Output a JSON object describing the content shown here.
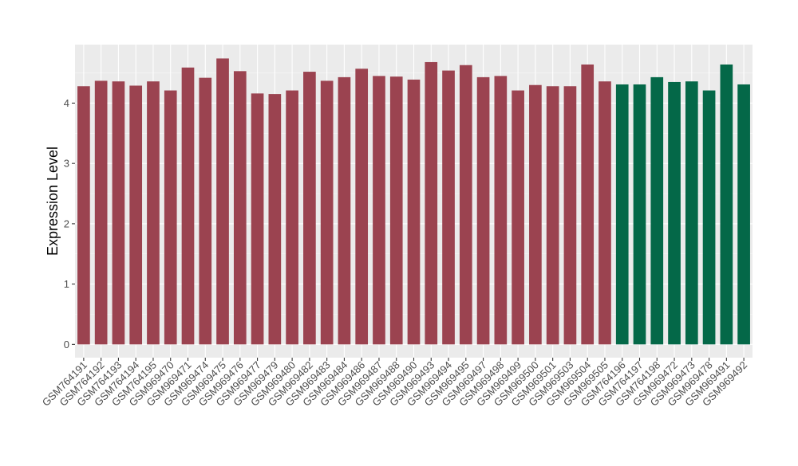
{
  "chart_data": {
    "type": "bar",
    "xlabel": "",
    "ylabel": "Expression Level",
    "ylim": [
      -0.22,
      4.97
    ],
    "yticks": [
      0,
      1,
      2,
      3,
      4
    ],
    "grid": true,
    "legend": "none",
    "colors": {
      "group_a": "#9B4350",
      "group_b": "#046848",
      "panel_bg": "#EBEBEB",
      "grid_major": "#FFFFFF",
      "tick_text": "#4D4D4D",
      "axis_text": "#000000"
    },
    "categories": [
      "GSM764191",
      "GSM764192",
      "GSM764193",
      "GSM764194",
      "GSM764195",
      "GSM969470",
      "GSM969471",
      "GSM969474",
      "GSM969475",
      "GSM969476",
      "GSM969477",
      "GSM969479",
      "GSM969480",
      "GSM969482",
      "GSM969483",
      "GSM969484",
      "GSM969486",
      "GSM969487",
      "GSM969488",
      "GSM969490",
      "GSM969493",
      "GSM969494",
      "GSM969495",
      "GSM969497",
      "GSM969498",
      "GSM969499",
      "GSM969500",
      "GSM969501",
      "GSM969503",
      "GSM969504",
      "GSM969505",
      "GSM764196",
      "GSM764197",
      "GSM764198",
      "GSM969472",
      "GSM969473",
      "GSM969478",
      "GSM969491",
      "GSM969492"
    ],
    "values": [
      4.28,
      4.37,
      4.36,
      4.29,
      4.36,
      4.21,
      4.59,
      4.42,
      4.74,
      4.53,
      4.16,
      4.15,
      4.21,
      4.52,
      4.37,
      4.43,
      4.57,
      4.45,
      4.44,
      4.39,
      4.68,
      4.54,
      4.63,
      4.43,
      4.45,
      4.21,
      4.3,
      4.28,
      4.28,
      4.64,
      4.36,
      4.31,
      4.31,
      4.43,
      4.35,
      4.36,
      4.21,
      4.64,
      4.31
    ],
    "groups": [
      "a",
      "a",
      "a",
      "a",
      "a",
      "a",
      "a",
      "a",
      "a",
      "a",
      "a",
      "a",
      "a",
      "a",
      "a",
      "a",
      "a",
      "a",
      "a",
      "a",
      "a",
      "a",
      "a",
      "a",
      "a",
      "a",
      "a",
      "a",
      "a",
      "a",
      "a",
      "b",
      "b",
      "b",
      "b",
      "b",
      "b",
      "b",
      "b"
    ]
  }
}
